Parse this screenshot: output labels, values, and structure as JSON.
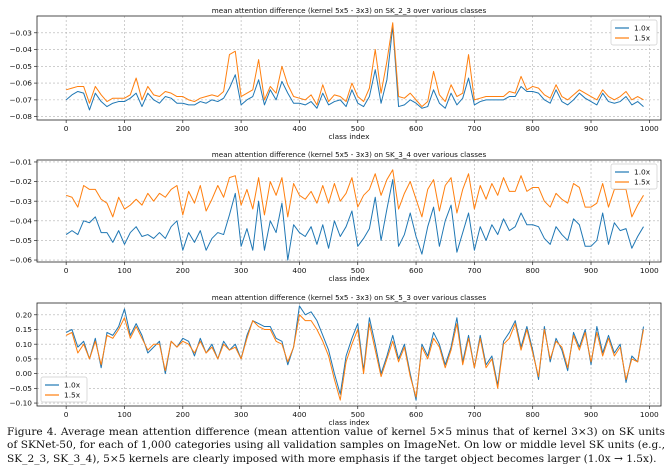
{
  "chart_data": [
    {
      "type": "line",
      "title": "mean attention difference (kernel 5x5 - 3x3) on SK_2_3 over various classes",
      "xlabel": "class index",
      "ylabel": "",
      "xlim": [
        -50,
        1020
      ],
      "ylim": [
        -0.082,
        -0.02
      ],
      "xticks": [
        0,
        100,
        200,
        300,
        400,
        500,
        600,
        700,
        800,
        900,
        1000
      ],
      "yticks": [
        -0.08,
        -0.07,
        -0.06,
        -0.05,
        -0.04,
        -0.03
      ],
      "ytick_labels": [
        "−0.08",
        "−0.07",
        "−0.06",
        "−0.05",
        "−0.04",
        "−0.03"
      ],
      "grid": true,
      "legend_position": "top-right",
      "x": [
        0,
        10,
        20,
        30,
        40,
        50,
        60,
        70,
        80,
        90,
        100,
        110,
        120,
        130,
        140,
        150,
        160,
        170,
        180,
        190,
        200,
        210,
        220,
        230,
        240,
        250,
        260,
        270,
        280,
        290,
        300,
        310,
        320,
        330,
        340,
        350,
        360,
        370,
        380,
        390,
        400,
        410,
        420,
        430,
        440,
        450,
        460,
        470,
        480,
        490,
        500,
        510,
        520,
        530,
        540,
        550,
        560,
        570,
        580,
        590,
        600,
        610,
        620,
        630,
        640,
        650,
        660,
        670,
        680,
        690,
        700,
        710,
        720,
        730,
        740,
        750,
        760,
        770,
        780,
        790,
        800,
        810,
        820,
        830,
        840,
        850,
        860,
        870,
        880,
        890,
        900,
        910,
        920,
        930,
        940,
        950,
        960,
        970,
        980,
        990
      ],
      "series": [
        {
          "name": "1.0x",
          "color": "#1f77b4",
          "values": [
            -0.07,
            -0.067,
            -0.065,
            -0.066,
            -0.076,
            -0.066,
            -0.071,
            -0.074,
            -0.072,
            -0.071,
            -0.071,
            -0.069,
            -0.066,
            -0.074,
            -0.066,
            -0.07,
            -0.072,
            -0.068,
            -0.069,
            -0.072,
            -0.072,
            -0.073,
            -0.073,
            -0.071,
            -0.072,
            -0.07,
            -0.071,
            -0.069,
            -0.063,
            -0.055,
            -0.073,
            -0.07,
            -0.068,
            -0.058,
            -0.073,
            -0.064,
            -0.07,
            -0.059,
            -0.066,
            -0.072,
            -0.072,
            -0.073,
            -0.071,
            -0.075,
            -0.066,
            -0.073,
            -0.071,
            -0.07,
            -0.074,
            -0.064,
            -0.072,
            -0.074,
            -0.068,
            -0.052,
            -0.072,
            -0.058,
            -0.026,
            -0.074,
            -0.073,
            -0.07,
            -0.072,
            -0.075,
            -0.074,
            -0.064,
            -0.072,
            -0.075,
            -0.066,
            -0.073,
            -0.069,
            -0.057,
            -0.073,
            -0.071,
            -0.07,
            -0.07,
            -0.07,
            -0.07,
            -0.068,
            -0.068,
            -0.062,
            -0.065,
            -0.065,
            -0.066,
            -0.07,
            -0.072,
            -0.064,
            -0.071,
            -0.073,
            -0.07,
            -0.066,
            -0.069,
            -0.071,
            -0.073,
            -0.066,
            -0.071,
            -0.072,
            -0.071,
            -0.068,
            -0.073,
            -0.071,
            -0.074
          ]
        },
        {
          "name": "1.5x",
          "color": "#ff7f0e",
          "values": [
            -0.064,
            -0.063,
            -0.062,
            -0.062,
            -0.072,
            -0.062,
            -0.067,
            -0.071,
            -0.069,
            -0.069,
            -0.069,
            -0.067,
            -0.057,
            -0.07,
            -0.062,
            -0.067,
            -0.068,
            -0.065,
            -0.066,
            -0.068,
            -0.068,
            -0.07,
            -0.071,
            -0.069,
            -0.068,
            -0.067,
            -0.068,
            -0.065,
            -0.043,
            -0.041,
            -0.068,
            -0.066,
            -0.064,
            -0.046,
            -0.07,
            -0.062,
            -0.066,
            -0.05,
            -0.061,
            -0.068,
            -0.069,
            -0.07,
            -0.067,
            -0.073,
            -0.061,
            -0.071,
            -0.067,
            -0.068,
            -0.071,
            -0.06,
            -0.068,
            -0.071,
            -0.063,
            -0.04,
            -0.066,
            -0.047,
            -0.024,
            -0.068,
            -0.069,
            -0.066,
            -0.07,
            -0.074,
            -0.071,
            -0.053,
            -0.067,
            -0.071,
            -0.061,
            -0.068,
            -0.066,
            -0.043,
            -0.07,
            -0.069,
            -0.068,
            -0.068,
            -0.068,
            -0.068,
            -0.065,
            -0.066,
            -0.056,
            -0.064,
            -0.062,
            -0.063,
            -0.067,
            -0.069,
            -0.061,
            -0.068,
            -0.07,
            -0.067,
            -0.064,
            -0.066,
            -0.068,
            -0.07,
            -0.064,
            -0.068,
            -0.07,
            -0.068,
            -0.065,
            -0.07,
            -0.068,
            -0.07
          ]
        }
      ]
    },
    {
      "type": "line",
      "title": "mean attention difference (kernel 5x5 - 3x3) on SK_3_4 over various classes",
      "xlabel": "class index",
      "ylabel": "",
      "xlim": [
        -50,
        1020
      ],
      "ylim": [
        -0.061,
        -0.009
      ],
      "xticks": [
        0,
        100,
        200,
        300,
        400,
        500,
        600,
        700,
        800,
        900,
        1000
      ],
      "yticks": [
        -0.06,
        -0.05,
        -0.04,
        -0.03,
        -0.02,
        -0.01
      ],
      "ytick_labels": [
        "−0.06",
        "−0.05",
        "−0.04",
        "−0.03",
        "−0.02",
        "−0.01"
      ],
      "grid": true,
      "legend_position": "top-right",
      "x": [
        0,
        10,
        20,
        30,
        40,
        50,
        60,
        70,
        80,
        90,
        100,
        110,
        120,
        130,
        140,
        150,
        160,
        170,
        180,
        190,
        200,
        210,
        220,
        230,
        240,
        250,
        260,
        270,
        280,
        290,
        300,
        310,
        320,
        330,
        340,
        350,
        360,
        370,
        380,
        390,
        400,
        410,
        420,
        430,
        440,
        450,
        460,
        470,
        480,
        490,
        500,
        510,
        520,
        530,
        540,
        550,
        560,
        570,
        580,
        590,
        600,
        610,
        620,
        630,
        640,
        650,
        660,
        670,
        680,
        690,
        700,
        710,
        720,
        730,
        740,
        750,
        760,
        770,
        780,
        790,
        800,
        810,
        820,
        830,
        840,
        850,
        860,
        870,
        880,
        890,
        900,
        910,
        920,
        930,
        940,
        950,
        960,
        970,
        980,
        990
      ],
      "series": [
        {
          "name": "1.0x",
          "color": "#1f77b4",
          "values": [
            -0.047,
            -0.045,
            -0.047,
            -0.04,
            -0.041,
            -0.038,
            -0.046,
            -0.046,
            -0.051,
            -0.045,
            -0.052,
            -0.046,
            -0.043,
            -0.048,
            -0.047,
            -0.049,
            -0.046,
            -0.049,
            -0.043,
            -0.04,
            -0.055,
            -0.046,
            -0.051,
            -0.045,
            -0.055,
            -0.049,
            -0.046,
            -0.047,
            -0.037,
            -0.026,
            -0.053,
            -0.044,
            -0.055,
            -0.03,
            -0.055,
            -0.04,
            -0.046,
            -0.031,
            -0.06,
            -0.042,
            -0.046,
            -0.048,
            -0.043,
            -0.052,
            -0.042,
            -0.054,
            -0.04,
            -0.048,
            -0.043,
            -0.035,
            -0.053,
            -0.049,
            -0.044,
            -0.028,
            -0.05,
            -0.034,
            -0.019,
            -0.053,
            -0.047,
            -0.036,
            -0.048,
            -0.057,
            -0.043,
            -0.033,
            -0.053,
            -0.04,
            -0.032,
            -0.056,
            -0.046,
            -0.036,
            -0.055,
            -0.043,
            -0.05,
            -0.042,
            -0.047,
            -0.039,
            -0.045,
            -0.043,
            -0.036,
            -0.042,
            -0.042,
            -0.043,
            -0.049,
            -0.052,
            -0.043,
            -0.047,
            -0.05,
            -0.039,
            -0.042,
            -0.053,
            -0.053,
            -0.05,
            -0.036,
            -0.052,
            -0.041,
            -0.045,
            -0.044,
            -0.054,
            -0.048,
            -0.043
          ]
        },
        {
          "name": "1.5x",
          "color": "#ff7f0e",
          "values": [
            -0.027,
            -0.028,
            -0.033,
            -0.022,
            -0.024,
            -0.024,
            -0.029,
            -0.031,
            -0.038,
            -0.028,
            -0.034,
            -0.032,
            -0.029,
            -0.032,
            -0.026,
            -0.03,
            -0.026,
            -0.028,
            -0.024,
            -0.022,
            -0.037,
            -0.025,
            -0.031,
            -0.022,
            -0.035,
            -0.029,
            -0.022,
            -0.028,
            -0.018,
            -0.017,
            -0.032,
            -0.024,
            -0.034,
            -0.018,
            -0.037,
            -0.02,
            -0.027,
            -0.018,
            -0.038,
            -0.021,
            -0.027,
            -0.029,
            -0.025,
            -0.031,
            -0.022,
            -0.031,
            -0.021,
            -0.03,
            -0.026,
            -0.018,
            -0.033,
            -0.027,
            -0.024,
            -0.016,
            -0.027,
            -0.019,
            -0.014,
            -0.034,
            -0.026,
            -0.02,
            -0.029,
            -0.038,
            -0.024,
            -0.019,
            -0.035,
            -0.022,
            -0.018,
            -0.036,
            -0.024,
            -0.016,
            -0.034,
            -0.022,
            -0.029,
            -0.021,
            -0.027,
            -0.018,
            -0.025,
            -0.025,
            -0.017,
            -0.025,
            -0.023,
            -0.023,
            -0.03,
            -0.033,
            -0.026,
            -0.029,
            -0.031,
            -0.021,
            -0.023,
            -0.033,
            -0.033,
            -0.031,
            -0.021,
            -0.033,
            -0.024,
            -0.024,
            -0.024,
            -0.038,
            -0.032,
            -0.027
          ]
        }
      ]
    },
    {
      "type": "line",
      "title": "mean attention difference (kernel 5x5 - 3x3) on SK_5_3 over various classes",
      "xlabel": "class index",
      "ylabel": "",
      "xlim": [
        -50,
        1020
      ],
      "ylim": [
        -0.11,
        0.24
      ],
      "xticks": [
        0,
        100,
        200,
        300,
        400,
        500,
        600,
        700,
        800,
        900,
        1000
      ],
      "yticks": [
        -0.1,
        -0.05,
        0.0,
        0.05,
        0.1,
        0.15,
        0.2
      ],
      "ytick_labels": [
        "−0.10",
        "−0.05",
        "0.00",
        "0.05",
        "0.10",
        "0.15",
        "0.20"
      ],
      "grid": true,
      "legend_position": "bottom-left",
      "x": [
        0,
        10,
        20,
        30,
        40,
        50,
        60,
        70,
        80,
        90,
        100,
        110,
        120,
        130,
        140,
        150,
        160,
        170,
        180,
        190,
        200,
        210,
        220,
        230,
        240,
        250,
        260,
        270,
        280,
        290,
        300,
        310,
        320,
        330,
        340,
        350,
        360,
        370,
        380,
        390,
        400,
        410,
        420,
        430,
        440,
        450,
        460,
        470,
        480,
        490,
        500,
        510,
        520,
        530,
        540,
        550,
        560,
        570,
        580,
        590,
        600,
        610,
        620,
        630,
        640,
        650,
        660,
        670,
        680,
        690,
        700,
        710,
        720,
        730,
        740,
        750,
        760,
        770,
        780,
        790,
        800,
        810,
        820,
        830,
        840,
        850,
        860,
        870,
        880,
        890,
        900,
        910,
        920,
        930,
        940,
        950,
        960,
        970,
        980,
        990
      ],
      "series": [
        {
          "name": "1.0x",
          "color": "#1f77b4",
          "values": [
            0.14,
            0.15,
            0.09,
            0.11,
            0.05,
            0.12,
            0.02,
            0.14,
            0.13,
            0.16,
            0.22,
            0.13,
            0.17,
            0.13,
            0.07,
            0.09,
            0.11,
            0.0,
            0.11,
            0.09,
            0.12,
            0.11,
            0.06,
            0.12,
            0.07,
            0.1,
            0.05,
            0.11,
            0.08,
            0.1,
            0.05,
            0.13,
            0.18,
            0.17,
            0.16,
            0.16,
            0.12,
            0.11,
            0.03,
            0.09,
            0.23,
            0.2,
            0.21,
            0.18,
            0.13,
            0.08,
            0.0,
            -0.07,
            0.06,
            0.12,
            0.17,
            0.01,
            0.19,
            0.1,
            0.0,
            0.06,
            0.13,
            0.05,
            0.1,
            0.0,
            -0.09,
            0.1,
            0.06,
            0.14,
            0.1,
            0.03,
            0.09,
            0.19,
            0.04,
            0.13,
            0.02,
            0.13,
            0.03,
            0.06,
            -0.04,
            0.11,
            0.14,
            0.18,
            0.09,
            0.16,
            0.08,
            -0.02,
            0.16,
            0.04,
            0.12,
            0.08,
            0.01,
            0.14,
            0.09,
            0.15,
            0.03,
            0.16,
            0.07,
            0.13,
            0.07,
            0.1,
            -0.03,
            0.06,
            0.04,
            0.16
          ]
        },
        {
          "name": "1.5x",
          "color": "#ff7f0e",
          "values": [
            0.13,
            0.14,
            0.07,
            0.1,
            0.05,
            0.11,
            0.03,
            0.13,
            0.12,
            0.15,
            0.19,
            0.12,
            0.16,
            0.12,
            0.08,
            0.1,
            0.1,
            0.01,
            0.11,
            0.09,
            0.11,
            0.1,
            0.07,
            0.11,
            0.07,
            0.09,
            0.05,
            0.1,
            0.08,
            0.09,
            0.05,
            0.12,
            0.18,
            0.16,
            0.15,
            0.15,
            0.11,
            0.1,
            0.04,
            0.09,
            0.2,
            0.18,
            0.18,
            0.15,
            0.11,
            0.06,
            -0.02,
            -0.09,
            0.04,
            0.1,
            0.15,
            0.0,
            0.17,
            0.08,
            -0.01,
            0.05,
            0.11,
            0.04,
            0.09,
            -0.01,
            -0.08,
            0.09,
            0.05,
            0.12,
            0.09,
            0.02,
            0.08,
            0.17,
            0.03,
            0.12,
            0.02,
            0.12,
            0.02,
            0.05,
            -0.05,
            0.1,
            0.12,
            0.17,
            0.08,
            0.15,
            0.07,
            -0.01,
            0.15,
            0.05,
            0.11,
            0.09,
            0.02,
            0.13,
            0.08,
            0.14,
            0.04,
            0.14,
            0.06,
            0.12,
            0.06,
            0.09,
            -0.02,
            0.05,
            0.04,
            0.15
          ]
        }
      ]
    }
  ],
  "caption": "Figure 4. Average mean attention difference (mean attention value of kernel 5×5 minus that of kernel 3×3) on SK units of SKNet-50, for each of 1,000 categories using all validation samples on ImageNet. On low or middle level SK units (e.g., SK_2_3, SK_3_4), 5×5 kernels are clearly imposed with more emphasis if the target object becomes larger (1.0x → 1.5x)."
}
